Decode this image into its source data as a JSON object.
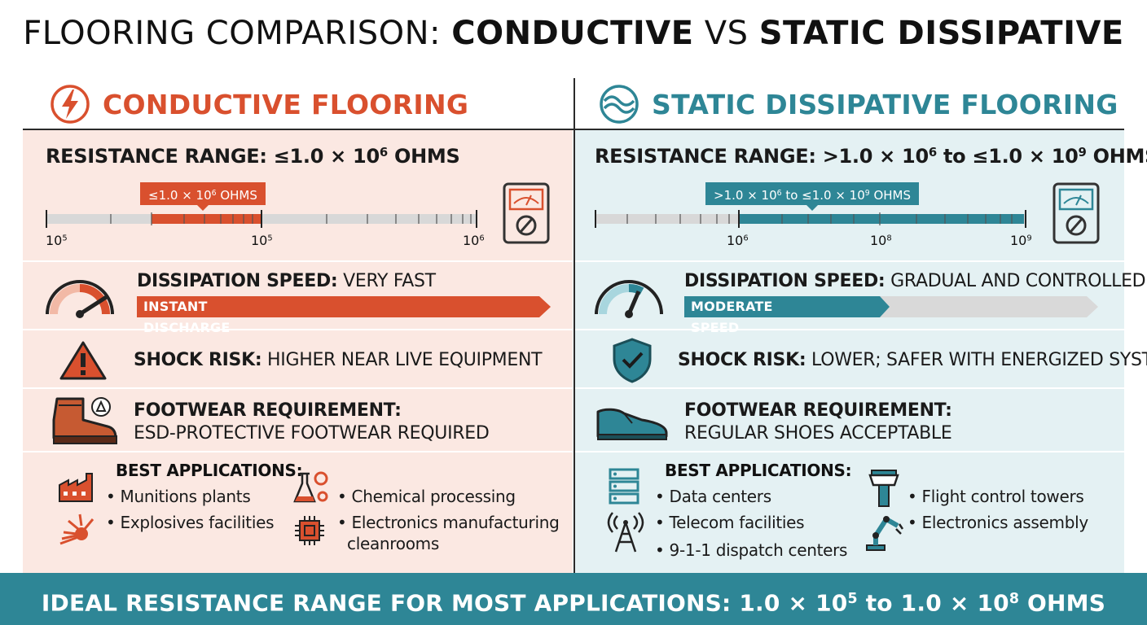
{
  "title": {
    "part1": "FLOORING COMPARISON: ",
    "part2": "CONDUCTIVE",
    "part3": " VS ",
    "part4": "STATIC DISSIPATIVE"
  },
  "colors": {
    "conductive": "#d9502e",
    "dissipative": "#2e8696",
    "conductive_bg": "#fbe8e2",
    "dissipative_bg": "#e4f1f3"
  },
  "conductive": {
    "heading": "CONDUCTIVE FLOORING",
    "heading_icon": "lightning-bolt-icon",
    "resistance": {
      "label": "RESISTANCE RANGE:",
      "value_prefix": "≤1.0 × 10",
      "value_exp": "6",
      "value_suffix": " OHMS",
      "tag_prefix": "≤1.0 × 10",
      "tag_exp": "6",
      "tag_suffix": " OHMS",
      "ticks": [
        {
          "base": "10",
          "exp": "5"
        },
        {
          "base": "10",
          "exp": "5"
        },
        {
          "base": "10",
          "exp": "6"
        }
      ],
      "meter_icon": "ohmmeter-icon"
    },
    "speed": {
      "label": "DISSIPATION SPEED:",
      "value": " VERY FAST",
      "bar_label": "INSTANT DISCHARGE",
      "level": 1.0,
      "gauge_icon": "speedometer-icon"
    },
    "shock": {
      "label": "SHOCK RISK:",
      "value": " HIGHER NEAR LIVE EQUIPMENT",
      "icon": "warning-triangle-icon"
    },
    "footwear": {
      "label": "FOOTWEAR REQUIREMENT:",
      "value": "ESD-PROTECTIVE FOOTWEAR REQUIRED",
      "icon": "esd-boot-icon"
    },
    "applications": {
      "label": "BEST APPLICATIONS:",
      "items": [
        "• Munitions plants",
        "• Explosives facilities",
        "• Chemical processing",
        "• Electronics manufacturing",
        "cleanrooms"
      ]
    }
  },
  "dissipative": {
    "heading": "STATIC DISSIPATIVE FLOORING",
    "heading_icon": "wave-icon",
    "resistance": {
      "label": "RESISTANCE RANGE:",
      "v1": " >1.0 × 10",
      "e1": "6",
      "v2": " to ≤1.0 × 10",
      "e2": "9",
      "v3": " OHMS",
      "tag1": ">1.0 × 10",
      "tagE1": "6",
      "tag2": " to ≤1.0 × 10",
      "tagE2": "9",
      "tag3": " OHMS",
      "ticks": [
        {
          "base": "10",
          "exp": "6"
        },
        {
          "base": "10",
          "exp": "8"
        },
        {
          "base": "10",
          "exp": "9"
        }
      ],
      "meter_icon": "ohmmeter-icon"
    },
    "speed": {
      "label": "DISSIPATION SPEED:",
      "value": " GRADUAL AND CONTROLLED",
      "bar_label": "MODERATE SPEED",
      "level": 0.5,
      "gauge_icon": "speedometer-icon"
    },
    "shock": {
      "label": "SHOCK RISK:",
      "value": " LOWER; SAFER WITH ENERGIZED SYSTEMS",
      "icon": "shield-check-icon"
    },
    "footwear": {
      "label": "FOOTWEAR REQUIREMENT:",
      "value": "REGULAR SHOES ACCEPTABLE",
      "icon": "dress-shoe-icon"
    },
    "applications": {
      "label": "BEST APPLICATIONS:",
      "items": [
        "• Data centers",
        "• Telecom facilities",
        "• 9-1-1 dispatch centers",
        "• Flight control towers",
        "• Electronics assembly"
      ]
    }
  },
  "footer": {
    "p1": "IDEAL RESISTANCE RANGE FOR MOST APPLICATIONS: 1.0 × 10",
    "e1": "5",
    "p2": " to 1.0 × 10",
    "e2": "8",
    "p3": " OHMS"
  }
}
